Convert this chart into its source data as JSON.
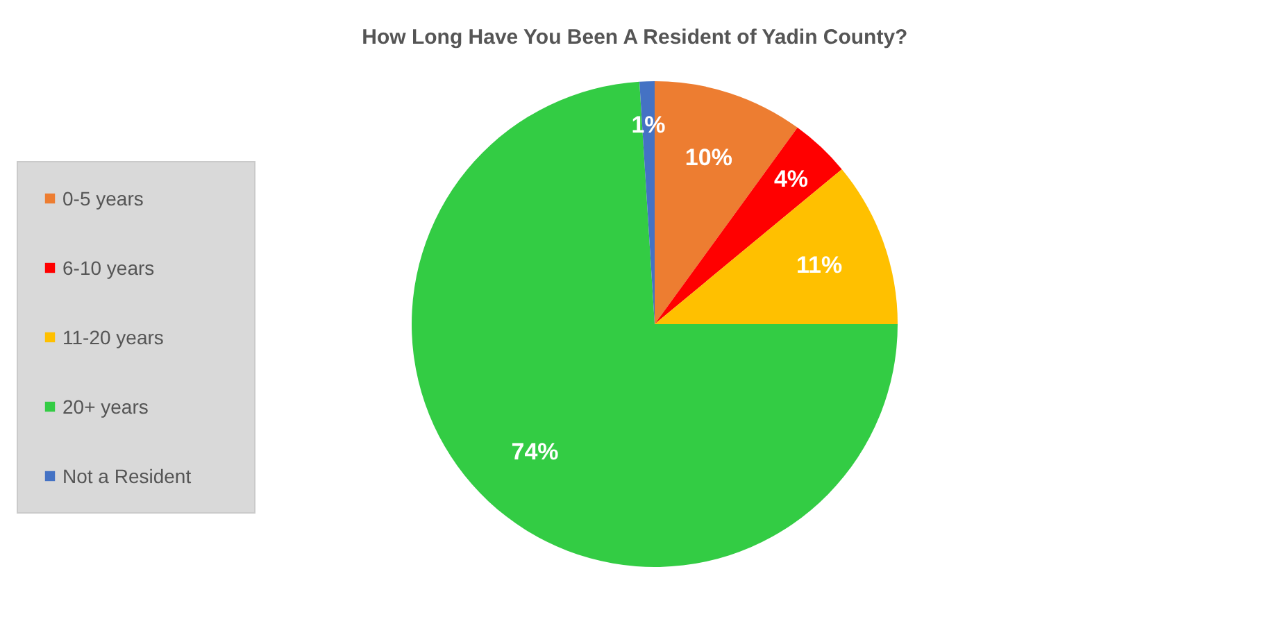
{
  "chart_data": {
    "type": "pie",
    "title": "How Long Have You Been A Resident of Yadin County?",
    "categories": [
      "0-5 years",
      "6-10 years",
      "11-20 years",
      "20+ years",
      "Not a Resident"
    ],
    "values": [
      10,
      4,
      11,
      74,
      1
    ],
    "colors": [
      "#ed7d31",
      "#ff0000",
      "#ffc000",
      "#33cc44",
      "#4472c4"
    ],
    "value_labels": [
      "10%",
      "4%",
      "11%",
      "74%",
      "1%"
    ],
    "legend": "left"
  }
}
